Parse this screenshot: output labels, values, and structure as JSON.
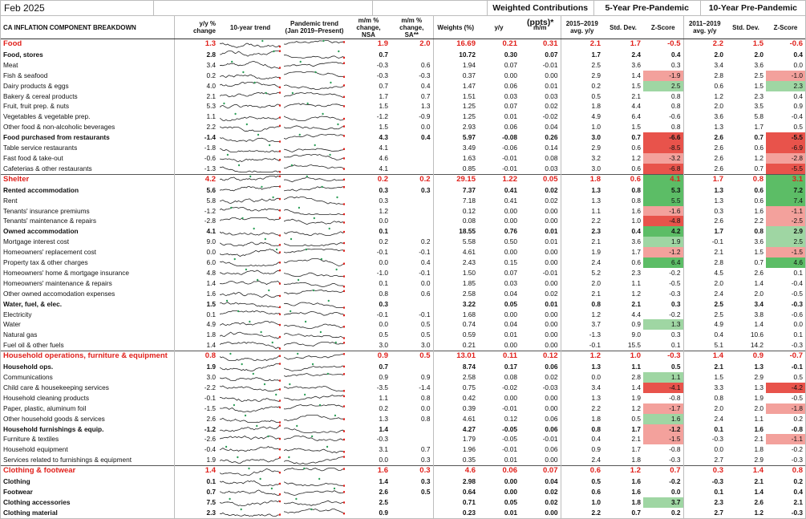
{
  "header": {
    "date": "Feb 2025",
    "group_weighted": "Weighted Contributions (ppts)*",
    "group_5yr": "5-Year Pre-Pandemic",
    "group_10yr": "10-Year Pre-Pandemic"
  },
  "columns": {
    "name": "CA INFLATION COMPONENT BREAKDOWN",
    "yy": "y/y % change",
    "trend10": "10-year trend",
    "pandemic": "Pandemic trend (Jan 2019–Present)",
    "mm_nsa": "m/m % change, NSA",
    "mm_sa": "m/m % change, SA**",
    "weights": "Weights (%)",
    "w_yy": "y/y",
    "w_mm": "m/m",
    "avg5": "2015–2019 avg. y/y",
    "sd5": "Std. Dev.",
    "z5": "Z-Score",
    "avg10": "2011–2019 avg. y/y",
    "sd10": "Std. Dev.",
    "z10": "Z-Score"
  },
  "colors": {
    "accent_red": "#e0201b",
    "z_green": "#9fd6a3",
    "z_red": "#f3a19c"
  },
  "rows": [
    {
      "name": "Food",
      "level": "major",
      "yy": "1.3",
      "mm": "1.9",
      "sa": "2.0",
      "w": "16.69",
      "wyy": "0.21",
      "wmm": "0.31",
      "a5": "2.1",
      "s5": "1.7",
      "z5": "-0.5",
      "a10": "2.2",
      "s10": "1.5",
      "z10": "-0.6",
      "z5c": "",
      "z10c": ""
    },
    {
      "name": "Food, stores",
      "level": "bold",
      "yy": "2.8",
      "mm": "0.7",
      "sa": "",
      "w": "10.72",
      "wyy": "0.30",
      "wmm": "0.07",
      "a5": "1.7",
      "s5": "2.4",
      "z5": "0.4",
      "a10": "2.0",
      "s10": "2.0",
      "z10": "0.4",
      "z5c": "",
      "z10c": ""
    },
    {
      "name": "Meat",
      "level": "",
      "yy": "3.4",
      "mm": "-0.3",
      "sa": "0.6",
      "w": "1.94",
      "wyy": "0.07",
      "wmm": "-0.01",
      "a5": "2.5",
      "s5": "3.6",
      "z5": "0.3",
      "a10": "3.4",
      "s10": "3.6",
      "z10": "0.0",
      "z5c": "",
      "z10c": ""
    },
    {
      "name": "Fish & seafood",
      "level": "",
      "yy": "0.2",
      "mm": "-0.3",
      "sa": "-0.3",
      "w": "0.37",
      "wyy": "0.00",
      "wmm": "0.00",
      "a5": "2.9",
      "s5": "1.4",
      "z5": "-1.9",
      "a10": "2.8",
      "s10": "2.5",
      "z10": "-1.0",
      "z5c": "zr",
      "z10c": "zr"
    },
    {
      "name": "Dairy products & eggs",
      "level": "",
      "yy": "4.0",
      "mm": "0.7",
      "sa": "0.4",
      "w": "1.47",
      "wyy": "0.06",
      "wmm": "0.01",
      "a5": "0.2",
      "s5": "1.5",
      "z5": "2.5",
      "a10": "0.6",
      "s10": "1.5",
      "z10": "2.3",
      "z5c": "zg",
      "z10c": "zg"
    },
    {
      "name": "Bakery & cereal products",
      "level": "",
      "yy": "2.1",
      "mm": "1.7",
      "sa": "0.7",
      "w": "1.51",
      "wyy": "0.03",
      "wmm": "0.03",
      "a5": "0.5",
      "s5": "2.1",
      "z5": "0.8",
      "a10": "1.2",
      "s10": "2.3",
      "z10": "0.4",
      "z5c": "",
      "z10c": ""
    },
    {
      "name": "Fruit, fruit prep. & nuts",
      "level": "",
      "yy": "5.3",
      "mm": "1.5",
      "sa": "1.3",
      "w": "1.25",
      "wyy": "0.07",
      "wmm": "0.02",
      "a5": "1.8",
      "s5": "4.4",
      "z5": "0.8",
      "a10": "2.0",
      "s10": "3.5",
      "z10": "0.9",
      "z5c": "",
      "z10c": ""
    },
    {
      "name": "Vegetables & vegetable prep.",
      "level": "",
      "yy": "1.1",
      "mm": "-1.2",
      "sa": "-0.9",
      "w": "1.25",
      "wyy": "0.01",
      "wmm": "-0.02",
      "a5": "4.9",
      "s5": "6.4",
      "z5": "-0.6",
      "a10": "3.6",
      "s10": "5.8",
      "z10": "-0.4",
      "z5c": "",
      "z10c": ""
    },
    {
      "name": "Other food & non-alcoholic beverages",
      "level": "",
      "yy": "2.2",
      "mm": "1.5",
      "sa": "0.0",
      "w": "2.93",
      "wyy": "0.06",
      "wmm": "0.04",
      "a5": "1.0",
      "s5": "1.5",
      "z5": "0.8",
      "a10": "1.3",
      "s10": "1.7",
      "z10": "0.5",
      "z5c": "",
      "z10c": ""
    },
    {
      "name": "Food purchased from restaurants",
      "level": "bold",
      "yy": "-1.4",
      "mm": "4.3",
      "sa": "0.4",
      "w": "5.97",
      "wyy": "-0.08",
      "wmm": "0.26",
      "a5": "3.0",
      "s5": "0.7",
      "z5": "-6.6",
      "a10": "2.6",
      "s10": "0.7",
      "z10": "-5.5",
      "z5c": "zrr",
      "z10c": "zrr"
    },
    {
      "name": "Table service restaurants",
      "level": "",
      "yy": "-1.8",
      "mm": "4.1",
      "sa": "",
      "w": "3.49",
      "wyy": "-0.06",
      "wmm": "0.14",
      "a5": "2.9",
      "s5": "0.6",
      "z5": "-8.5",
      "a10": "2.6",
      "s10": "0.6",
      "z10": "-6.9",
      "z5c": "zrr",
      "z10c": "zrr"
    },
    {
      "name": "Fast food & take-out",
      "level": "",
      "yy": "-0.6",
      "mm": "4.6",
      "sa": "",
      "w": "1.63",
      "wyy": "-0.01",
      "wmm": "0.08",
      "a5": "3.2",
      "s5": "1.2",
      "z5": "-3.2",
      "a10": "2.6",
      "s10": "1.2",
      "z10": "-2.8",
      "z5c": "zr",
      "z10c": "zr"
    },
    {
      "name": "Cafeterias & other restaurants",
      "level": "",
      "yy": "-1.3",
      "mm": "4.1",
      "sa": "",
      "w": "0.85",
      "wyy": "-0.01",
      "wmm": "0.03",
      "a5": "3.0",
      "s5": "0.6",
      "z5": "-6.8",
      "a10": "2.6",
      "s10": "0.7",
      "z10": "-5.5",
      "z5c": "zrr",
      "z10c": "zrr"
    },
    {
      "name": "Shelter",
      "level": "major",
      "yy": "4.2",
      "mm": "0.2",
      "sa": "0.2",
      "w": "29.15",
      "wyy": "1.22",
      "wmm": "0.05",
      "a5": "1.8",
      "s5": "0.6",
      "z5": "4.1",
      "a10": "1.7",
      "s10": "0.8",
      "z10": "3.1",
      "z5c": "zgg",
      "z10c": "zgg"
    },
    {
      "name": "Rented accommodation",
      "level": "bold",
      "yy": "5.6",
      "mm": "0.3",
      "sa": "0.3",
      "w": "7.37",
      "wyy": "0.41",
      "wmm": "0.02",
      "a5": "1.3",
      "s5": "0.8",
      "z5": "5.3",
      "a10": "1.3",
      "s10": "0.6",
      "z10": "7.2",
      "z5c": "zgg",
      "z10c": "zgg"
    },
    {
      "name": "Rent",
      "level": "",
      "yy": "5.8",
      "mm": "0.3",
      "sa": "",
      "w": "7.18",
      "wyy": "0.41",
      "wmm": "0.02",
      "a5": "1.3",
      "s5": "0.8",
      "z5": "5.5",
      "a10": "1.3",
      "s10": "0.6",
      "z10": "7.4",
      "z5c": "zgg",
      "z10c": "zgg"
    },
    {
      "name": "Tenants' insurance premiums",
      "level": "",
      "yy": "-1.2",
      "mm": "1.2",
      "sa": "",
      "w": "0.12",
      "wyy": "0.00",
      "wmm": "0.00",
      "a5": "1.1",
      "s5": "1.6",
      "z5": "-1.6",
      "a10": "0.3",
      "s10": "1.6",
      "z10": "-1.1",
      "z5c": "zr",
      "z10c": "zr"
    },
    {
      "name": "Tenants' maintenance & repairs",
      "level": "",
      "yy": "-2.8",
      "mm": "0.0",
      "sa": "",
      "w": "0.08",
      "wyy": "0.00",
      "wmm": "0.00",
      "a5": "2.2",
      "s5": "1.0",
      "z5": "-4.8",
      "a10": "2.6",
      "s10": "2.2",
      "z10": "-2.5",
      "z5c": "zrr",
      "z10c": "zr"
    },
    {
      "name": "Owned accommodation",
      "level": "bold",
      "yy": "4.1",
      "mm": "0.1",
      "sa": "",
      "w": "18.55",
      "wyy": "0.76",
      "wmm": "0.01",
      "a5": "2.3",
      "s5": "0.4",
      "z5": "4.2",
      "a10": "1.7",
      "s10": "0.8",
      "z10": "2.9",
      "z5c": "zgg",
      "z10c": "zg"
    },
    {
      "name": "Mortgage interest cost",
      "level": "",
      "yy": "9.0",
      "mm": "0.2",
      "sa": "0.2",
      "w": "5.58",
      "wyy": "0.50",
      "wmm": "0.01",
      "a5": "2.1",
      "s5": "3.6",
      "z5": "1.9",
      "a10": "-0.1",
      "s10": "3.6",
      "z10": "2.5",
      "z5c": "zg",
      "z10c": "zg"
    },
    {
      "name": "Homeowners' replacement cost",
      "level": "",
      "yy": "0.0",
      "mm": "-0.1",
      "sa": "-0.1",
      "w": "4.61",
      "wyy": "0.00",
      "wmm": "0.00",
      "a5": "1.9",
      "s5": "1.7",
      "z5": "-1.2",
      "a10": "2.1",
      "s10": "1.5",
      "z10": "-1.5",
      "z5c": "zr",
      "z10c": "zr"
    },
    {
      "name": "Property tax & other charges",
      "level": "",
      "yy": "6.0",
      "mm": "0.0",
      "sa": "0.4",
      "w": "2.43",
      "wyy": "0.15",
      "wmm": "0.00",
      "a5": "2.4",
      "s5": "0.6",
      "z5": "6.4",
      "a10": "2.8",
      "s10": "0.7",
      "z10": "4.6",
      "z5c": "zgg",
      "z10c": "zgg"
    },
    {
      "name": "Homeowners' home & mortgage insurance",
      "level": "",
      "yy": "4.8",
      "mm": "-1.0",
      "sa": "-0.1",
      "w": "1.50",
      "wyy": "0.07",
      "wmm": "-0.01",
      "a5": "5.2",
      "s5": "2.3",
      "z5": "-0.2",
      "a10": "4.5",
      "s10": "2.6",
      "z10": "0.1",
      "z5c": "",
      "z10c": ""
    },
    {
      "name": "Homeowners' maintenance & repairs",
      "level": "",
      "yy": "1.4",
      "mm": "0.1",
      "sa": "0.0",
      "w": "1.85",
      "wyy": "0.03",
      "wmm": "0.00",
      "a5": "2.0",
      "s5": "1.1",
      "z5": "-0.5",
      "a10": "2.0",
      "s10": "1.4",
      "z10": "-0.4",
      "z5c": "",
      "z10c": ""
    },
    {
      "name": "Other owned accomodation expenses",
      "level": "",
      "yy": "1.6",
      "mm": "0.8",
      "sa": "0.6",
      "w": "2.58",
      "wyy": "0.04",
      "wmm": "0.02",
      "a5": "2.1",
      "s5": "1.2",
      "z5": "-0.3",
      "a10": "2.4",
      "s10": "2.0",
      "z10": "-0.5",
      "z5c": "",
      "z10c": ""
    },
    {
      "name": "Water, fuel, & elec.",
      "level": "bold",
      "yy": "1.5",
      "mm": "0.3",
      "sa": "",
      "w": "3.22",
      "wyy": "0.05",
      "wmm": "0.01",
      "a5": "0.8",
      "s5": "2.1",
      "z5": "0.3",
      "a10": "2.5",
      "s10": "3.4",
      "z10": "-0.3",
      "z5c": "",
      "z10c": ""
    },
    {
      "name": "Electricity",
      "level": "",
      "yy": "0.1",
      "mm": "-0.1",
      "sa": "-0.1",
      "w": "1.68",
      "wyy": "0.00",
      "wmm": "0.00",
      "a5": "1.2",
      "s5": "4.4",
      "z5": "-0.2",
      "a10": "2.5",
      "s10": "3.8",
      "z10": "-0.6",
      "z5c": "",
      "z10c": ""
    },
    {
      "name": "Water",
      "level": "",
      "yy": "4.9",
      "mm": "0.0",
      "sa": "0.5",
      "w": "0.74",
      "wyy": "0.04",
      "wmm": "0.00",
      "a5": "3.7",
      "s5": "0.9",
      "z5": "1.3",
      "a10": "4.9",
      "s10": "1.4",
      "z10": "0.0",
      "z5c": "zg",
      "z10c": ""
    },
    {
      "name": "Natural gas",
      "level": "",
      "yy": "1.8",
      "mm": "0.5",
      "sa": "0.5",
      "w": "0.59",
      "wyy": "0.01",
      "wmm": "0.00",
      "a5": "-1.3",
      "s5": "9.0",
      "z5": "0.3",
      "a10": "0.4",
      "s10": "10.6",
      "z10": "0.1",
      "z5c": "",
      "z10c": ""
    },
    {
      "name": "Fuel oil & other fuels",
      "level": "",
      "yy": "1.4",
      "mm": "3.0",
      "sa": "3.0",
      "w": "0.21",
      "wyy": "0.00",
      "wmm": "0.00",
      "a5": "-0.1",
      "s5": "15.5",
      "z5": "0.1",
      "a10": "5.1",
      "s10": "14.2",
      "z10": "-0.3",
      "z5c": "",
      "z10c": ""
    },
    {
      "name": "Household operations, furniture & equipment",
      "level": "major",
      "yy": "0.8",
      "mm": "0.9",
      "sa": "0.5",
      "w": "13.01",
      "wyy": "0.11",
      "wmm": "0.12",
      "a5": "1.2",
      "s5": "1.0",
      "z5": "-0.3",
      "a10": "1.4",
      "s10": "0.9",
      "z10": "-0.7",
      "z5c": "",
      "z10c": ""
    },
    {
      "name": "Household ops.",
      "level": "bold",
      "yy": "1.9",
      "mm": "0.7",
      "sa": "",
      "w": "8.74",
      "wyy": "0.17",
      "wmm": "0.06",
      "a5": "1.3",
      "s5": "1.1",
      "z5": "0.5",
      "a10": "2.1",
      "s10": "1.3",
      "z10": "-0.1",
      "z5c": "",
      "z10c": ""
    },
    {
      "name": "Communications",
      "level": "",
      "yy": "3.0",
      "mm": "0.9",
      "sa": "0.9",
      "w": "2.58",
      "wyy": "0.08",
      "wmm": "0.02",
      "a5": "0.0",
      "s5": "2.8",
      "z5": "1.1",
      "a10": "1.5",
      "s10": "2.9",
      "z10": "0.5",
      "z5c": "zg",
      "z10c": ""
    },
    {
      "name": "Child care & housekeeping services",
      "level": "",
      "yy": "-2.2",
      "mm": "-3.5",
      "sa": "-1.4",
      "w": "0.75",
      "wyy": "-0.02",
      "wmm": "-0.03",
      "a5": "3.4",
      "s5": "1.4",
      "z5": "-4.1",
      "a10": "3.3",
      "s10": "1.3",
      "z10": "-4.2",
      "z5c": "zrr",
      "z10c": "zrr"
    },
    {
      "name": "Household cleaning products",
      "level": "",
      "yy": "-0.1",
      "mm": "1.1",
      "sa": "0.8",
      "w": "0.42",
      "wyy": "0.00",
      "wmm": "0.00",
      "a5": "1.3",
      "s5": "1.9",
      "z5": "-0.8",
      "a10": "0.8",
      "s10": "1.9",
      "z10": "-0.5",
      "z5c": "",
      "z10c": ""
    },
    {
      "name": "Paper, plastic, aluminum foil",
      "level": "",
      "yy": "-1.5",
      "mm": "0.2",
      "sa": "0.0",
      "w": "0.39",
      "wyy": "-0.01",
      "wmm": "0.00",
      "a5": "2.2",
      "s5": "1.2",
      "z5": "-1.7",
      "a10": "2.0",
      "s10": "2.0",
      "z10": "-1.8",
      "z5c": "zr",
      "z10c": "zr"
    },
    {
      "name": "Other household goods & services",
      "level": "",
      "yy": "2.6",
      "mm": "1.3",
      "sa": "0.8",
      "w": "4.61",
      "wyy": "0.12",
      "wmm": "0.06",
      "a5": "1.8",
      "s5": "0.5",
      "z5": "1.6",
      "a10": "2.4",
      "s10": "1.1",
      "z10": "0.2",
      "z5c": "zg",
      "z10c": ""
    },
    {
      "name": "Household furnishings & equip.",
      "level": "bold",
      "yy": "-1.2",
      "mm": "1.4",
      "sa": "",
      "w": "4.27",
      "wyy": "-0.05",
      "wmm": "0.06",
      "a5": "0.8",
      "s5": "1.7",
      "z5": "-1.2",
      "a10": "0.1",
      "s10": "1.6",
      "z10": "-0.8",
      "z5c": "zr",
      "z10c": ""
    },
    {
      "name": "Furniture & textiles",
      "level": "",
      "yy": "-2.6",
      "mm": "-0.3",
      "sa": "",
      "w": "1.79",
      "wyy": "-0.05",
      "wmm": "-0.01",
      "a5": "0.4",
      "s5": "2.1",
      "z5": "-1.5",
      "a10": "-0.3",
      "s10": "2.1",
      "z10": "-1.1",
      "z5c": "zr",
      "z10c": "zr"
    },
    {
      "name": "Household equipment",
      "level": "",
      "yy": "-0.4",
      "mm": "3.1",
      "sa": "0.7",
      "w": "1.96",
      "wyy": "-0.01",
      "wmm": "0.06",
      "a5": "0.9",
      "s5": "1.7",
      "z5": "-0.8",
      "a10": "0.0",
      "s10": "1.8",
      "z10": "-0.2",
      "z5c": "",
      "z10c": ""
    },
    {
      "name": "Services related to furnishings & equipment",
      "level": "",
      "yy": "1.9",
      "mm": "0.0",
      "sa": "0.3",
      "w": "0.35",
      "wyy": "0.01",
      "wmm": "0.00",
      "a5": "2.4",
      "s5": "1.8",
      "z5": "-0.3",
      "a10": "2.7",
      "s10": "2.9",
      "z10": "-0.3",
      "z5c": "",
      "z10c": ""
    },
    {
      "name": "Clothing & footwear",
      "level": "major",
      "yy": "1.4",
      "mm": "1.6",
      "sa": "0.3",
      "w": "4.6",
      "wyy": "0.06",
      "wmm": "0.07",
      "a5": "0.6",
      "s5": "1.2",
      "z5": "0.7",
      "a10": "0.3",
      "s10": "1.4",
      "z10": "0.8",
      "z5c": "",
      "z10c": ""
    },
    {
      "name": "Clothing",
      "level": "bold",
      "yy": "0.1",
      "mm": "1.4",
      "sa": "0.3",
      "w": "2.98",
      "wyy": "0.00",
      "wmm": "0.04",
      "a5": "0.5",
      "s5": "1.6",
      "z5": "-0.2",
      "a10": "-0.3",
      "s10": "2.1",
      "z10": "0.2",
      "z5c": "",
      "z10c": ""
    },
    {
      "name": "Footwear",
      "level": "bold",
      "yy": "0.7",
      "mm": "2.6",
      "sa": "0.5",
      "w": "0.64",
      "wyy": "0.00",
      "wmm": "0.02",
      "a5": "0.6",
      "s5": "1.6",
      "z5": "0.0",
      "a10": "0.1",
      "s10": "1.4",
      "z10": "0.4",
      "z5c": "",
      "z10c": ""
    },
    {
      "name": "Clothing accessories",
      "level": "bold",
      "yy": "7.5",
      "mm": "2.5",
      "sa": "",
      "w": "0.71",
      "wyy": "0.05",
      "wmm": "0.02",
      "a5": "1.0",
      "s5": "1.8",
      "z5": "3.7",
      "a10": "2.3",
      "s10": "2.6",
      "z10": "2.1",
      "z5c": "zg",
      "z10c": ""
    },
    {
      "name": "Clothing material",
      "level": "bold",
      "yy": "2.3",
      "mm": "0.9",
      "sa": "",
      "w": "0.23",
      "wyy": "0.01",
      "wmm": "0.00",
      "a5": "2.2",
      "s5": "0.7",
      "z5": "0.2",
      "a10": "2.7",
      "s10": "1.2",
      "z10": "-0.3",
      "z5c": "",
      "z10c": ""
    }
  ]
}
